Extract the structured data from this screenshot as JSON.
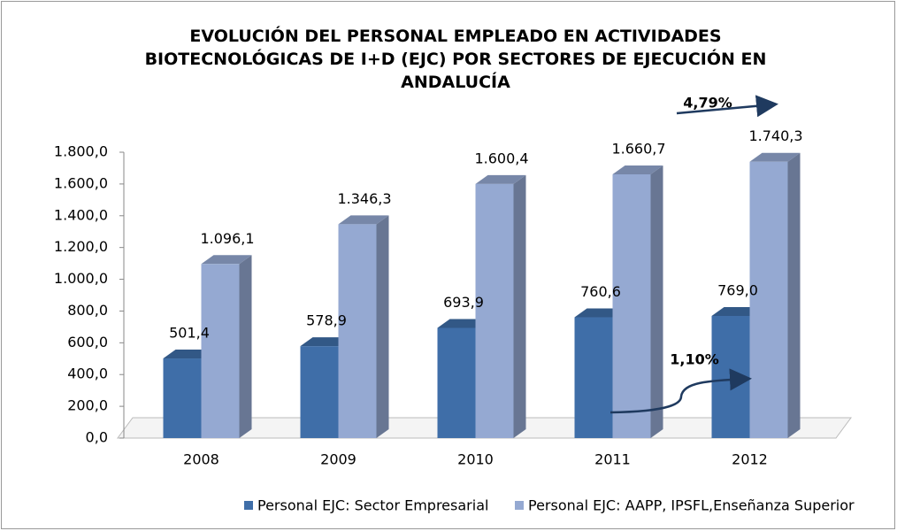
{
  "chart_data": {
    "type": "bar3d",
    "title": "EVOLUCIÓN DEL PERSONAL EMPLEADO EN ACTIVIDADES BIOTECNOLÓGICAS DE I+D (EJC) POR SECTORES DE EJECUCIÓN EN ANDALUCÍA",
    "categories": [
      "2008",
      "2009",
      "2010",
      "2011",
      "2012"
    ],
    "series": [
      {
        "name": "Personal EJC: Sector Empresarial",
        "color": "#3f6ea8",
        "values": [
          501.4,
          578.9,
          693.9,
          760.6,
          769.0
        ],
        "value_labels": [
          "501,4",
          "578,9",
          "693,9",
          "760,6",
          "769,0"
        ]
      },
      {
        "name": "Personal EJC: AAPP, IPSFL,Enseñanza Superior",
        "color": "#95a9d2",
        "values": [
          1096.1,
          1346.3,
          1600.4,
          1660.7,
          1740.3
        ],
        "value_labels": [
          "1.096,1",
          "1.346,3",
          "1.600,4",
          "1.660,7",
          "1.740,3"
        ]
      }
    ],
    "ylim": [
      0,
      1800
    ],
    "yticks": [
      {
        "value": 0,
        "label": "0,0"
      },
      {
        "value": 200,
        "label": "200,0"
      },
      {
        "value": 400,
        "label": "400,0"
      },
      {
        "value": 600,
        "label": "600,0"
      },
      {
        "value": 800,
        "label": "800,0"
      },
      {
        "value": 1000,
        "label": "1.000,0"
      },
      {
        "value": 1200,
        "label": "1.200,0"
      },
      {
        "value": 1400,
        "label": "1.400,0"
      },
      {
        "value": 1600,
        "label": "1.600,0"
      },
      {
        "value": 1800,
        "label": "1.800,0"
      }
    ],
    "annotations": [
      "4,79%",
      "1,10%"
    ],
    "legend": "bottom"
  }
}
